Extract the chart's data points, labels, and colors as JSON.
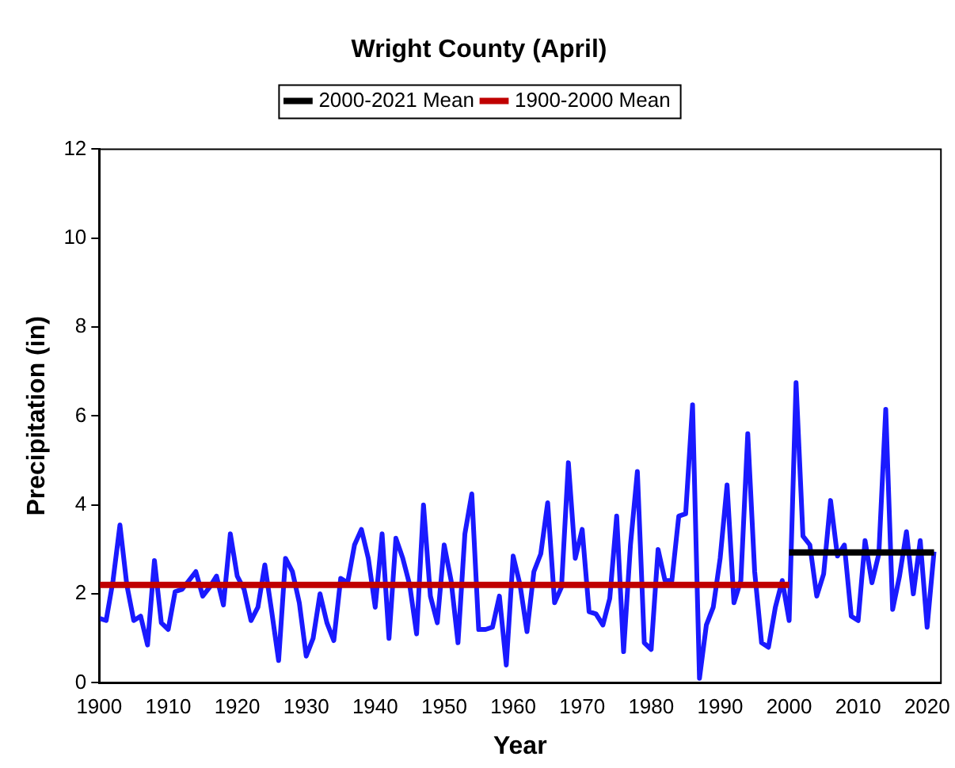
{
  "chart_data": {
    "type": "line",
    "title": "Wright County (April)",
    "xlabel": "Year",
    "ylabel": "Precipitation (in)",
    "x": [
      1900,
      1901,
      1902,
      1903,
      1904,
      1905,
      1906,
      1907,
      1908,
      1909,
      1910,
      1911,
      1912,
      1913,
      1914,
      1915,
      1916,
      1917,
      1918,
      1919,
      1920,
      1921,
      1922,
      1923,
      1924,
      1925,
      1926,
      1927,
      1928,
      1929,
      1930,
      1931,
      1932,
      1933,
      1934,
      1935,
      1936,
      1937,
      1938,
      1939,
      1940,
      1941,
      1942,
      1943,
      1944,
      1945,
      1946,
      1947,
      1948,
      1949,
      1950,
      1951,
      1952,
      1953,
      1954,
      1955,
      1956,
      1957,
      1958,
      1959,
      1960,
      1961,
      1962,
      1963,
      1964,
      1965,
      1966,
      1967,
      1968,
      1969,
      1970,
      1971,
      1972,
      1973,
      1974,
      1975,
      1976,
      1977,
      1978,
      1979,
      1980,
      1981,
      1982,
      1983,
      1984,
      1985,
      1986,
      1987,
      1988,
      1989,
      1990,
      1991,
      1992,
      1993,
      1994,
      1995,
      1996,
      1997,
      1998,
      1999,
      2000,
      2001,
      2002,
      2003,
      2004,
      2005,
      2006,
      2007,
      2008,
      2009,
      2010,
      2011,
      2012,
      2013,
      2014,
      2015,
      2016,
      2017,
      2018,
      2019,
      2020,
      2021
    ],
    "series": [
      {
        "color": "#1a1aff",
        "values": [
          1.45,
          1.4,
          2.3,
          3.55,
          2.2,
          1.4,
          1.5,
          0.85,
          2.75,
          1.35,
          1.2,
          2.05,
          2.1,
          2.3,
          2.5,
          1.95,
          2.15,
          2.4,
          1.75,
          3.35,
          2.4,
          2.1,
          1.4,
          1.7,
          2.65,
          1.6,
          0.5,
          2.8,
          2.5,
          1.8,
          0.6,
          1.0,
          2.0,
          1.35,
          0.95,
          2.35,
          2.25,
          3.1,
          3.45,
          2.8,
          1.7,
          3.35,
          1.0,
          3.25,
          2.8,
          2.2,
          1.1,
          4.0,
          1.95,
          1.35,
          3.1,
          2.3,
          0.9,
          3.35,
          4.25,
          1.2,
          1.2,
          1.25,
          1.95,
          0.4,
          2.85,
          2.2,
          1.15,
          2.5,
          2.9,
          4.05,
          1.8,
          2.15,
          4.95,
          2.8,
          3.45,
          1.6,
          1.55,
          1.3,
          1.9,
          3.75,
          0.7,
          3.1,
          4.75,
          0.9,
          0.75,
          3.0,
          2.3,
          2.3,
          3.75,
          3.8,
          6.25,
          0.1,
          1.3,
          1.7,
          2.8,
          4.45,
          1.8,
          2.3,
          5.6,
          2.5,
          0.9,
          0.8,
          1.7,
          2.3,
          1.4,
          6.75,
          3.3,
          3.1,
          1.95,
          2.45,
          4.1,
          2.85,
          3.1,
          1.5,
          1.4,
          3.2,
          2.25,
          2.9,
          6.15,
          1.65,
          2.4,
          3.4,
          2.0,
          3.2,
          1.25,
          2.95
        ]
      },
      {
        "name": "1900-2000 Mean",
        "color": "#c00000",
        "x": [
          1900,
          2000
        ],
        "values": [
          2.2,
          2.2
        ]
      },
      {
        "name": "2000-2021 Mean",
        "color": "#000000",
        "x": [
          2000,
          2021
        ],
        "values": [
          2.93,
          2.93
        ]
      }
    ],
    "xlim": [
      1900,
      2022
    ],
    "xticks": [
      1900,
      1910,
      1920,
      1930,
      1940,
      1950,
      1960,
      1970,
      1980,
      1990,
      2000,
      2010,
      2020
    ],
    "ylim": [
      0,
      12
    ],
    "yticks": [
      0,
      2,
      4,
      6,
      8,
      10,
      12
    ],
    "grid": false,
    "legend": "top",
    "marker": "none",
    "line_style": "solid"
  }
}
